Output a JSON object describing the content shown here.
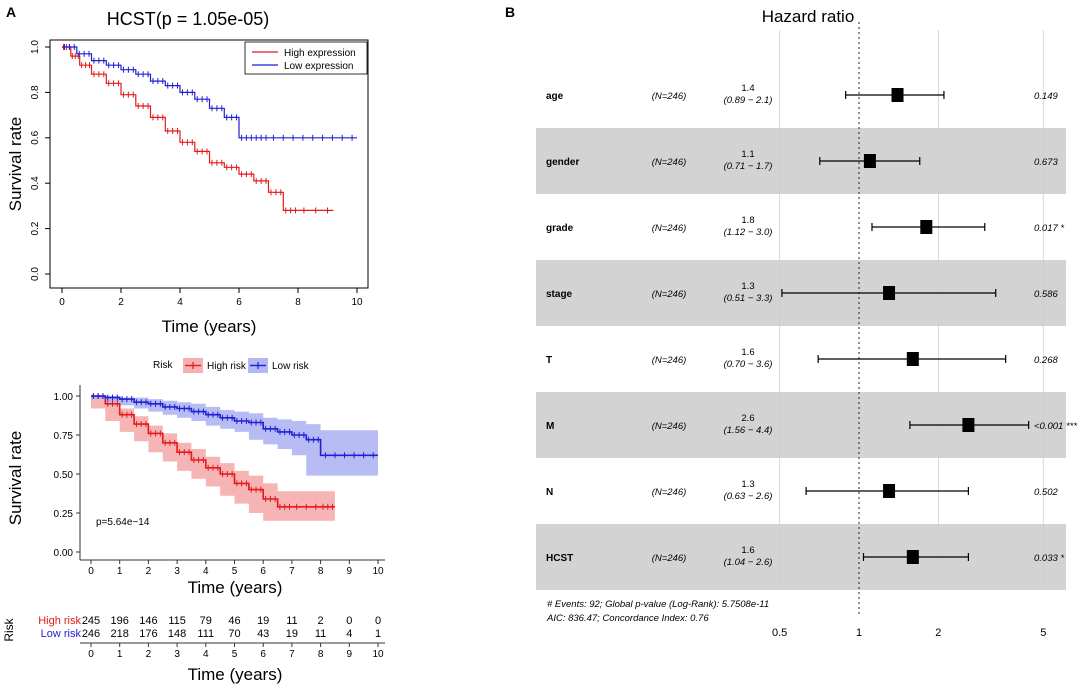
{
  "chart_data": [
    {
      "panel": "A",
      "type": "line",
      "title": "HCST(p = 1.05e-05)",
      "xlabel": "Time (years)",
      "ylabel": "Survival rate",
      "xlim": [
        0,
        10
      ],
      "ylim": [
        0,
        1
      ],
      "xticks": [
        "0",
        "2",
        "4",
        "6",
        "8",
        "10"
      ],
      "yticks": [
        "0.0",
        "0.2",
        "0.4",
        "0.6",
        "0.8",
        "1.0"
      ],
      "legend": [
        "High expression",
        "Low expression"
      ],
      "legend_position": "top-right",
      "colors": [
        "#e41a1c",
        "#1f1fd6"
      ],
      "series": [
        {
          "name": "High expression",
          "x": [
            0,
            0.3,
            0.6,
            1,
            1.5,
            2,
            2.5,
            3,
            3.5,
            4,
            4.5,
            5,
            5.5,
            6,
            6.5,
            7,
            7.5,
            8,
            9.2
          ],
          "y": [
            1,
            0.96,
            0.92,
            0.88,
            0.84,
            0.79,
            0.74,
            0.69,
            0.63,
            0.58,
            0.54,
            0.49,
            0.47,
            0.44,
            0.41,
            0.36,
            0.28,
            0.28,
            0.28
          ]
        },
        {
          "name": "Low expression",
          "x": [
            0,
            0.5,
            1,
            1.5,
            2,
            2.5,
            3,
            3.5,
            4,
            4.5,
            5,
            5.5,
            6,
            6.5,
            7,
            8,
            9,
            10
          ],
          "y": [
            1,
            0.97,
            0.94,
            0.92,
            0.9,
            0.88,
            0.85,
            0.83,
            0.8,
            0.77,
            0.73,
            0.69,
            0.6,
            0.6,
            0.6,
            0.6,
            0.6,
            0.6
          ]
        }
      ]
    },
    {
      "panel": "A2",
      "type": "line",
      "xlabel": "Time (years)",
      "ylabel": "Survival rate",
      "xlim": [
        0,
        10
      ],
      "ylim": [
        0,
        1
      ],
      "xticks": [
        "0",
        "1",
        "2",
        "3",
        "4",
        "5",
        "6",
        "7",
        "8",
        "9",
        "10"
      ],
      "yticks": [
        "0.00",
        "0.25",
        "0.50",
        "0.75",
        "1.00"
      ],
      "legend_title": "Risk",
      "legend": [
        "High risk",
        "Low risk"
      ],
      "legend_position": "top",
      "annotation": "p=5.64e−14",
      "colors": [
        "#e41a1c",
        "#1f1fd6"
      ],
      "series": [
        {
          "name": "High risk",
          "x": [
            0,
            0.5,
            1,
            1.5,
            2,
            2.5,
            3,
            3.5,
            4,
            4.5,
            5,
            5.5,
            6,
            6.5,
            7,
            8,
            8.5
          ],
          "y": [
            1,
            0.95,
            0.88,
            0.82,
            0.76,
            0.7,
            0.64,
            0.59,
            0.54,
            0.5,
            0.44,
            0.4,
            0.34,
            0.29,
            0.29,
            0.29,
            0.29
          ],
          "ci_low": [
            1,
            0.92,
            0.84,
            0.77,
            0.71,
            0.64,
            0.58,
            0.52,
            0.47,
            0.42,
            0.36,
            0.31,
            0.25,
            0.2,
            0.2,
            0.2,
            0.2
          ],
          "ci_high": [
            1,
            0.98,
            0.92,
            0.87,
            0.81,
            0.76,
            0.7,
            0.66,
            0.61,
            0.57,
            0.52,
            0.49,
            0.44,
            0.39,
            0.39,
            0.39,
            0.39
          ]
        },
        {
          "name": "Low risk",
          "x": [
            0,
            0.5,
            1,
            1.5,
            2,
            2.5,
            3,
            3.5,
            4,
            4.5,
            5,
            5.5,
            6,
            6.5,
            7,
            7.5,
            8,
            9,
            10
          ],
          "y": [
            1,
            0.99,
            0.98,
            0.96,
            0.95,
            0.93,
            0.92,
            0.9,
            0.88,
            0.86,
            0.84,
            0.83,
            0.79,
            0.77,
            0.75,
            0.72,
            0.62,
            0.62,
            0.62
          ],
          "ci_low": [
            1,
            0.98,
            0.96,
            0.94,
            0.92,
            0.9,
            0.88,
            0.86,
            0.84,
            0.81,
            0.79,
            0.77,
            0.72,
            0.69,
            0.66,
            0.62,
            0.49,
            0.49,
            0.49
          ],
          "ci_high": [
            1,
            1,
            0.99,
            0.99,
            0.98,
            0.97,
            0.96,
            0.95,
            0.93,
            0.91,
            0.9,
            0.89,
            0.86,
            0.85,
            0.84,
            0.82,
            0.78,
            0.78,
            0.78
          ]
        }
      ]
    },
    {
      "panel": "A3",
      "type": "table",
      "ylabel": "Risk",
      "xlabel": "Time (years)",
      "columns": [
        "0",
        "1",
        "2",
        "3",
        "4",
        "5",
        "6",
        "7",
        "8",
        "9",
        "10"
      ],
      "rows": [
        {
          "name": "High risk",
          "values": [
            245,
            196,
            146,
            115,
            79,
            46,
            19,
            11,
            2,
            0,
            0
          ]
        },
        {
          "name": "Low risk",
          "values": [
            246,
            218,
            176,
            148,
            111,
            70,
            43,
            19,
            11,
            4,
            1
          ]
        }
      ]
    },
    {
      "panel": "B",
      "type": "scatter",
      "title": "Hazard ratio",
      "xscale": "log",
      "xticks": [
        "0.5",
        "1",
        "2",
        "5"
      ],
      "xlim": [
        0.45,
        5.5
      ],
      "reference_line": 1,
      "rows": [
        {
          "name": "age",
          "n": "(N=246)",
          "hr": 1.4,
          "hr_label": "1.4",
          "ci": [
            0.89,
            2.1
          ],
          "ci_label": "(0.89 − 2.1)",
          "p": "0.149"
        },
        {
          "name": "gender",
          "n": "(N=246)",
          "hr": 1.1,
          "hr_label": "1.1",
          "ci": [
            0.71,
            1.7
          ],
          "ci_label": "(0.71 − 1.7)",
          "p": "0.673"
        },
        {
          "name": "grade",
          "n": "(N=246)",
          "hr": 1.8,
          "hr_label": "1.8",
          "ci": [
            1.12,
            3.0
          ],
          "ci_label": "(1.12 − 3.0)",
          "p": "0.017 *"
        },
        {
          "name": "stage",
          "n": "(N=246)",
          "hr": 1.3,
          "hr_label": "1.3",
          "ci": [
            0.51,
            3.3
          ],
          "ci_label": "(0.51 − 3.3)",
          "p": "0.586"
        },
        {
          "name": "T",
          "n": "(N=246)",
          "hr": 1.6,
          "hr_label": "1.6",
          "ci": [
            0.7,
            3.6
          ],
          "ci_label": "(0.70 − 3.6)",
          "p": "0.268"
        },
        {
          "name": "M",
          "n": "(N=246)",
          "hr": 2.6,
          "hr_label": "2.6",
          "ci": [
            1.56,
            4.4
          ],
          "ci_label": "(1.56 − 4.4)",
          "p": "<0.001 ***"
        },
        {
          "name": "N",
          "n": "(N=246)",
          "hr": 1.3,
          "hr_label": "1.3",
          "ci": [
            0.63,
            2.6
          ],
          "ci_label": "(0.63 − 2.6)",
          "p": "0.502"
        },
        {
          "name": "HCST",
          "n": "(N=246)",
          "hr": 1.6,
          "hr_label": "1.6",
          "ci": [
            1.04,
            2.6
          ],
          "ci_label": "(1.04 − 2.6)",
          "p": "0.033 *"
        }
      ],
      "footer": [
        "# Events: 92; Global p-value (Log-Rank): 5.7508e-11",
        "AIC: 836.47; Concordance Index: 0.76"
      ]
    }
  ],
  "panel_labels": [
    "A",
    "B"
  ]
}
